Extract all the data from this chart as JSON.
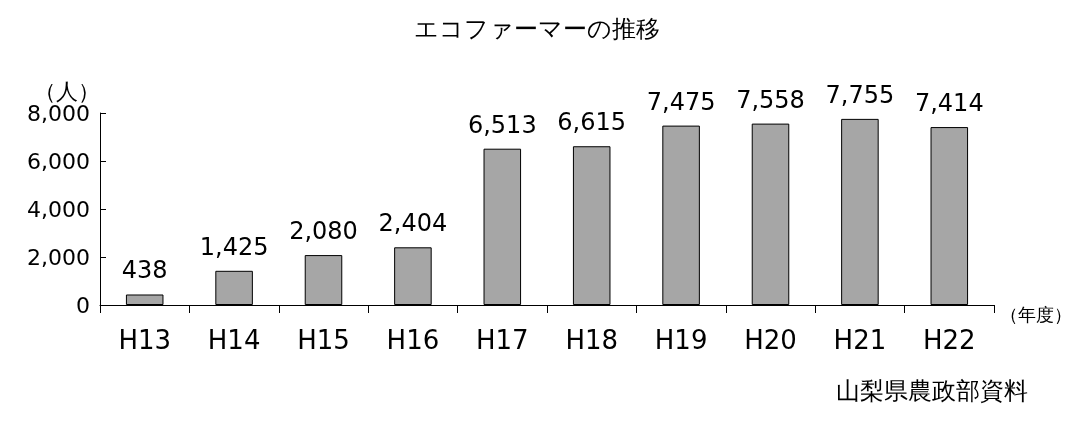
{
  "chart_data": {
    "type": "bar",
    "title": "エコファーマーの推移",
    "ylabel": "（人）",
    "xlabel": "（年度）",
    "annotations": [
      "山梨県農政部資料"
    ],
    "categories": [
      "H13",
      "H14",
      "H15",
      "H16",
      "H17",
      "H18",
      "H19",
      "H20",
      "H21",
      "H22"
    ],
    "values": [
      438,
      1425,
      2080,
      2404,
      6513,
      6615,
      7475,
      7558,
      7755,
      7414
    ],
    "value_labels": [
      "438",
      "1,425",
      "2,080",
      "2,404",
      "6,513",
      "6,615",
      "7,475",
      "7,558",
      "7,755",
      "7,414"
    ],
    "color": "#a6a6a6",
    "ylim": [
      0,
      8000
    ],
    "yticks": [
      0,
      {
        "value": 2000,
        "label": "2,000"
      },
      {
        "value": 4000,
        "label": "4,000"
      },
      {
        "value": 6000,
        "label": "6,000"
      },
      {
        "value": 8000,
        "label": "8,000"
      }
    ],
    "grid": false
  }
}
